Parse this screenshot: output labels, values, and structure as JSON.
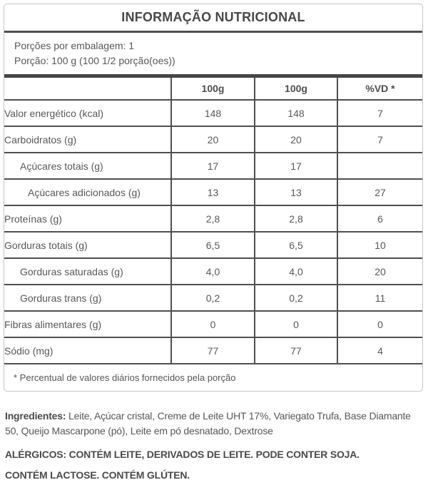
{
  "panel": {
    "title": "INFORMAÇÃO NUTRICIONAL",
    "servings_per_package": "Porções por embalagem: 1",
    "serving_size": "Porção: 100 g (100 1/2 porção(oes))",
    "columns": [
      "",
      "100g",
      "100g",
      "%VD *"
    ],
    "rows": [
      {
        "label": "Valor energético (kcal)",
        "indent": 0,
        "values": [
          "148",
          "148",
          "7"
        ]
      },
      {
        "label": "Carboidratos (g)",
        "indent": 0,
        "values": [
          "20",
          "20",
          "7"
        ]
      },
      {
        "label": "Açúcares totais (g)",
        "indent": 1,
        "values": [
          "17",
          "17",
          ""
        ]
      },
      {
        "label": "Açúcares adicionados (g)",
        "indent": 2,
        "values": [
          "13",
          "13",
          "27"
        ]
      },
      {
        "label": "Proteínas (g)",
        "indent": 0,
        "values": [
          "2,8",
          "2,8",
          "6"
        ]
      },
      {
        "label": "Gorduras totais (g)",
        "indent": 0,
        "values": [
          "6,5",
          "6,5",
          "10"
        ]
      },
      {
        "label": "Gorduras saturadas (g)",
        "indent": 1,
        "values": [
          "4,0",
          "4,0",
          "20"
        ]
      },
      {
        "label": "Gorduras trans (g)",
        "indent": 1,
        "values": [
          "0,2",
          "0,2",
          "11"
        ]
      },
      {
        "label": "Fibras alimentares (g)",
        "indent": 0,
        "values": [
          "0",
          "0",
          "0"
        ]
      },
      {
        "label": "Sódio (mg)",
        "indent": 0,
        "values": [
          "77",
          "77",
          "4"
        ]
      }
    ],
    "footnote": "* Percentual de valores diários fornecidos pela porção"
  },
  "ingredients": {
    "label": "Ingredientes:",
    "text": " Leite, Açúcar cristal, Creme de Leite UHT 17%, Variegato Trufa, Base Diamante 50, Queijo Mascarpone (pó), Leite em pó desnatado, Dextrose"
  },
  "allergens": {
    "line1": "ALÉRGICOS: CONTÉM LEITE, DERIVADOS DE LEITE. PODE CONTER SOJA.",
    "line2": "CONTÉM LACTOSE. CONTÉM GLÚTEN."
  },
  "colors": {
    "line_dark": "#4f4f4f",
    "bar_dark": "#454545",
    "outer_border": "#c4c4c4",
    "text_gray": "#575757"
  }
}
